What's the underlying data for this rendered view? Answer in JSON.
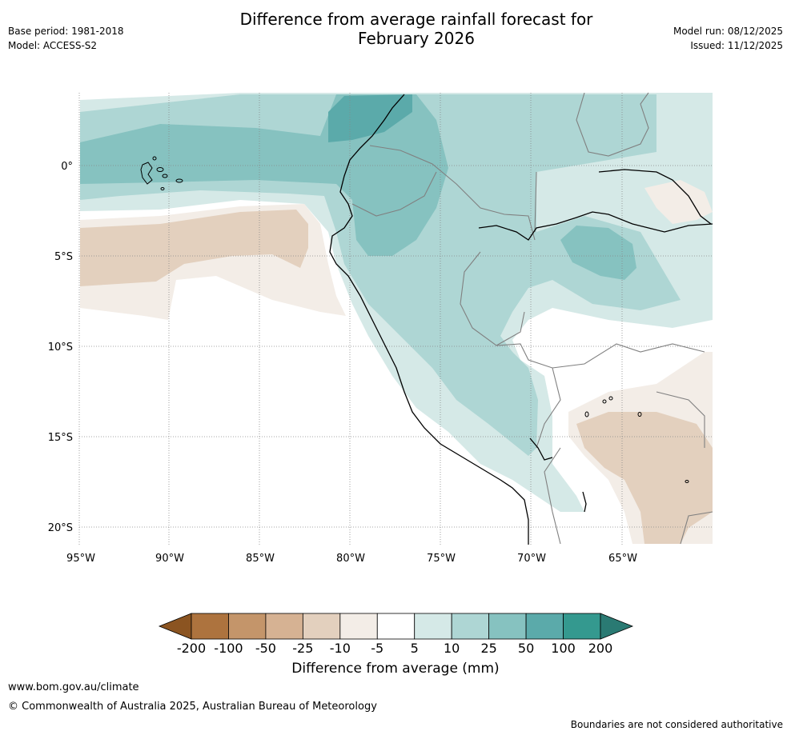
{
  "header": {
    "title_line1": "Difference from average rainfall forecast for",
    "title_line2": "February 2026",
    "base_period": "Base period: 1981-2018",
    "model": "Model: ACCESS-S2",
    "model_run": "Model run: 08/12/2025",
    "issued": "Issued: 11/12/2025"
  },
  "map": {
    "longitude_ticks": [
      "95°W",
      "90°W",
      "85°W",
      "80°W",
      "75°W",
      "70°W",
      "65°W"
    ],
    "latitude_ticks": [
      "0°",
      "5°S",
      "10°S",
      "15°S",
      "20°S"
    ],
    "colors": {
      "teal_100": "#5BAAAA",
      "teal_50": "#86C2C0",
      "teal_25": "#AED6D4",
      "teal_10": "#D5E9E7",
      "brown_10": "#F3EDE7",
      "brown_25": "#E3D0BE",
      "coast": "#000000",
      "border": "#808080",
      "grid": "#888888"
    }
  },
  "colorbar": {
    "label": "Difference from average (mm)",
    "ticks": [
      "-200",
      "-100",
      "-50",
      "-25",
      "-10",
      "-5",
      "5",
      "10",
      "25",
      "50",
      "100",
      "200"
    ],
    "colors": [
      "#8B5421",
      "#AD733E",
      "#C4956A",
      "#D6B293",
      "#E3D0BE",
      "#F3EDE7",
      "#FFFFFF",
      "#D5E9E7",
      "#AED6D4",
      "#86C2C0",
      "#5BAAAA",
      "#34998F",
      "#2A7A73"
    ]
  },
  "footer": {
    "url": "www.bom.gov.au/climate",
    "copyright": "© Commonwealth of Australia 2025, Australian Bureau of Meteorology",
    "disclaimer": "Boundaries are not considered authoritative"
  }
}
